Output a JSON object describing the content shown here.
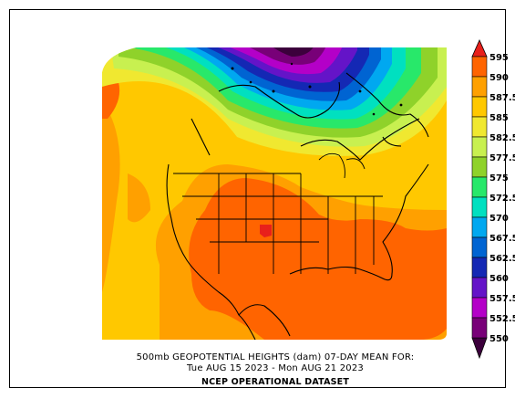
{
  "title_line1": "500mb GEOPOTENTIAL HEIGHTS (dam)   07-DAY MEAN FOR:",
  "title_line2": "Tue AUG 15 2023 - Mon AUG 21 2023",
  "title_line3": "NCEP OPERATIONAL DATASET",
  "colorbar": {
    "levels": [
      "595",
      "590",
      "587.5",
      "585",
      "582.5",
      "577.5",
      "575",
      "572.5",
      "570",
      "567.5",
      "562.5",
      "560",
      "557.5",
      "552.5",
      "550"
    ],
    "colors": [
      "#e8201b",
      "#ff6400",
      "#ffa000",
      "#ffc800",
      "#f0e830",
      "#c8f050",
      "#8fd22a",
      "#28e86a",
      "#00e0c0",
      "#00a8f0",
      "#0064d2",
      "#1428b4",
      "#6414c8",
      "#b400c8",
      "#780078",
      "#3c003c"
    ]
  },
  "map": {
    "field": "500mb geopotential heights",
    "max_region": "southern Rockies / Oklahoma-Texas panhandle",
    "min_region": "Arctic / Hudson Bay"
  }
}
